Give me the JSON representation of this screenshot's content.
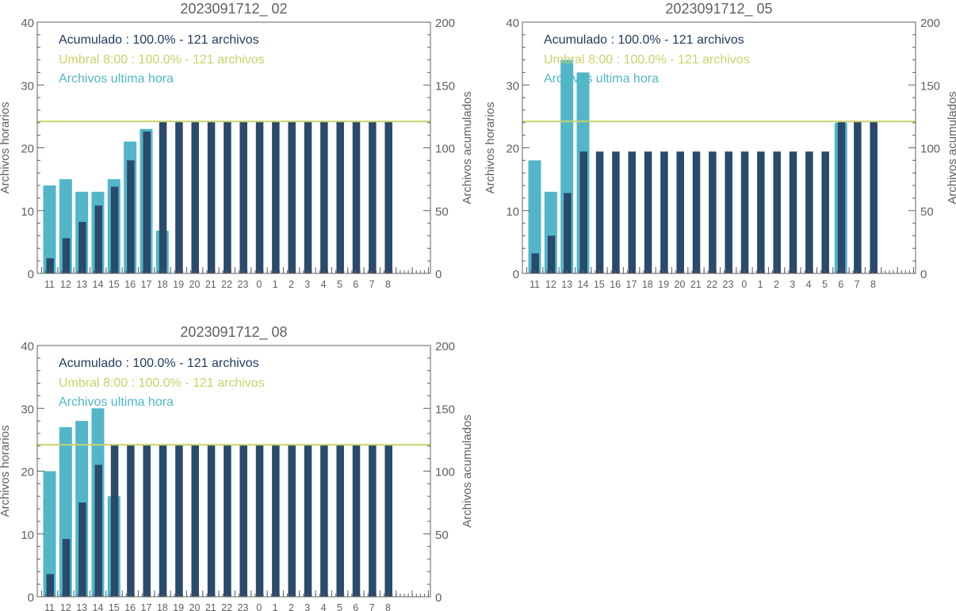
{
  "colors": {
    "hourly": "#52b6c8",
    "cumulative": "#2a4a6b",
    "threshold": "#c8d36a",
    "axis": "#606060",
    "text_dark": "#1e3a5f"
  },
  "chart_data": [
    {
      "type": "bar",
      "title": "2023091712_ 02",
      "xlabel": "",
      "ylabel": "Archivos horarios",
      "y2label": "Archivos acumulados",
      "categories": [
        "11",
        "12",
        "13",
        "14",
        "15",
        "16",
        "17",
        "18",
        "19",
        "20",
        "21",
        "22",
        "23",
        "0",
        "1",
        "2",
        "3",
        "4",
        "5",
        "6",
        "7",
        "8"
      ],
      "ylim": [
        0,
        40
      ],
      "y2lim": [
        0,
        200
      ],
      "yticks": [
        0,
        10,
        20,
        30,
        40
      ],
      "y2ticks": [
        0,
        50,
        100,
        150,
        200
      ],
      "threshold": 121,
      "grid": false,
      "legend_position": "top-left",
      "legend": {
        "acumulado": "Acumulado : 100.0% - 121 archivos",
        "umbral": "Umbral 8:00 : 100.0% - 121 archivos",
        "ultima": "Archivos ultima hora"
      },
      "series": [
        {
          "name": "Archivos ultima hora",
          "axis": "left",
          "values": [
            14,
            15,
            13,
            13,
            15,
            21,
            23,
            6.8,
            null,
            null,
            null,
            null,
            null,
            null,
            null,
            null,
            null,
            null,
            null,
            null,
            null,
            null
          ]
        },
        {
          "name": "Acumulado",
          "axis": "right",
          "values": [
            12,
            28,
            41,
            54,
            69,
            90,
            113,
            121,
            121,
            121,
            121,
            121,
            121,
            121,
            121,
            121,
            121,
            121,
            121,
            121,
            121,
            121
          ]
        }
      ]
    },
    {
      "type": "bar",
      "title": "2023091712_ 05",
      "xlabel": "",
      "ylabel": "Archivos horarios",
      "y2label": "Archivos acumulados",
      "categories": [
        "11",
        "12",
        "13",
        "14",
        "15",
        "16",
        "17",
        "18",
        "19",
        "20",
        "21",
        "22",
        "23",
        "0",
        "1",
        "2",
        "3",
        "4",
        "5",
        "6",
        "7",
        "8"
      ],
      "ylim": [
        0,
        40
      ],
      "y2lim": [
        0,
        200
      ],
      "yticks": [
        0,
        10,
        20,
        30,
        40
      ],
      "y2ticks": [
        0,
        50,
        100,
        150,
        200
      ],
      "threshold": 121,
      "grid": false,
      "legend_position": "top-left",
      "legend": {
        "acumulado": "Acumulado : 100.0% - 121 archivos",
        "umbral": "Umbral 8:00 : 100.0% - 121 archivos",
        "ultima": "Archivos ultima hora"
      },
      "series": [
        {
          "name": "Archivos ultima hora",
          "axis": "left",
          "values": [
            18,
            13,
            34,
            32,
            null,
            null,
            null,
            null,
            null,
            null,
            null,
            null,
            null,
            null,
            null,
            null,
            null,
            null,
            null,
            24,
            null,
            null
          ]
        },
        {
          "name": "Acumulado",
          "axis": "right",
          "values": [
            16,
            30,
            64,
            97,
            97,
            97,
            97,
            97,
            97,
            97,
            97,
            97,
            97,
            97,
            97,
            97,
            97,
            97,
            97,
            121,
            121,
            121
          ]
        }
      ]
    },
    {
      "type": "bar",
      "title": "2023091712_ 08",
      "xlabel": "",
      "ylabel": "Archivos horarios",
      "y2label": "Archivos acumulados",
      "categories": [
        "11",
        "12",
        "13",
        "14",
        "15",
        "16",
        "17",
        "18",
        "19",
        "20",
        "21",
        "22",
        "23",
        "0",
        "1",
        "2",
        "3",
        "4",
        "5",
        "6",
        "7",
        "8"
      ],
      "ylim": [
        0,
        40
      ],
      "y2lim": [
        0,
        200
      ],
      "yticks": [
        0,
        10,
        20,
        30,
        40
      ],
      "y2ticks": [
        0,
        50,
        100,
        150,
        200
      ],
      "threshold": 121,
      "grid": false,
      "legend_position": "top-left",
      "legend": {
        "acumulado": "Acumulado : 100.0% - 121 archivos",
        "umbral": "Umbral 8:00 : 100.0% - 121 archivos",
        "ultima": "Archivos ultima hora"
      },
      "series": [
        {
          "name": "Archivos ultima hora",
          "axis": "left",
          "values": [
            20,
            27,
            28,
            30,
            16,
            null,
            null,
            null,
            null,
            null,
            null,
            null,
            null,
            null,
            null,
            null,
            null,
            null,
            null,
            null,
            null,
            null
          ]
        },
        {
          "name": "Acumulado",
          "axis": "right",
          "values": [
            18,
            46,
            75,
            105,
            121,
            121,
            121,
            121,
            121,
            121,
            121,
            121,
            121,
            121,
            121,
            121,
            121,
            121,
            121,
            121,
            121,
            121
          ]
        }
      ]
    }
  ]
}
